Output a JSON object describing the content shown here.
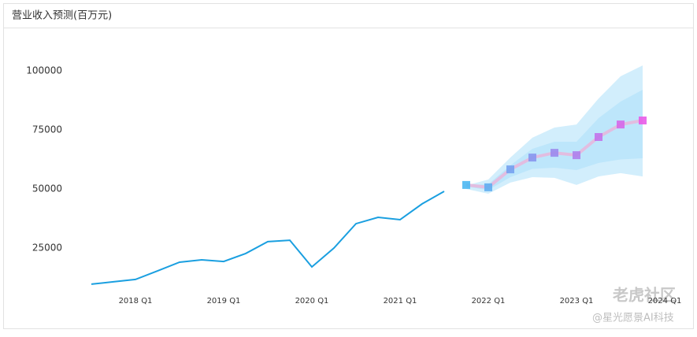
{
  "chart_data": {
    "type": "line",
    "title": "营业收入预测(百万元)",
    "categories": [
      null,
      null,
      "2018 Q1",
      null,
      null,
      null,
      "2019 Q1",
      null,
      null,
      null,
      "2020 Q1",
      null,
      null,
      null,
      "2021 Q1",
      null,
      null,
      null,
      "2022 Q1",
      null,
      null,
      null,
      "2023 Q1",
      null,
      null,
      null,
      "2024 Q1"
    ],
    "series": [
      {
        "color": "#1a9fe0",
        "values": [
          9700,
          10700,
          11700,
          15300,
          19000,
          20000,
          19300,
          22700,
          27700,
          28300,
          17000,
          25000,
          35300,
          38000,
          37000,
          43700,
          49000,
          null,
          null,
          null,
          null,
          null,
          null,
          null,
          null,
          null,
          null
        ]
      },
      {
        "color": "#e2bde0",
        "marker_colors": [
          "#4db8f2",
          "#e85ce8"
        ],
        "values": [
          null,
          null,
          null,
          null,
          null,
          null,
          null,
          null,
          null,
          null,
          null,
          null,
          null,
          null,
          null,
          null,
          null,
          51700,
          50700,
          58300,
          63300,
          65300,
          64300,
          72000,
          77300,
          79000,
          null
        ]
      }
    ],
    "bands": [
      {
        "color": "#d2eefc",
        "upper": [
          null,
          null,
          null,
          null,
          null,
          null,
          null,
          null,
          null,
          null,
          null,
          null,
          null,
          null,
          null,
          null,
          null,
          51500,
          54000,
          63300,
          71700,
          76000,
          77300,
          88300,
          97700,
          102300,
          null
        ],
        "lower": [
          null,
          null,
          null,
          null,
          null,
          null,
          null,
          null,
          null,
          null,
          null,
          null,
          null,
          null,
          null,
          null,
          null,
          50000,
          48000,
          52700,
          55000,
          54700,
          51700,
          55300,
          56700,
          55300,
          null
        ]
      },
      {
        "color": "#bde6fb",
        "upper": [
          null,
          null,
          null,
          null,
          null,
          null,
          null,
          null,
          null,
          null,
          null,
          null,
          null,
          null,
          null,
          null,
          null,
          51700,
          52000,
          60000,
          67000,
          70000,
          70000,
          80000,
          87000,
          92000,
          null
        ],
        "lower": [
          null,
          null,
          null,
          null,
          null,
          null,
          null,
          null,
          null,
          null,
          null,
          null,
          null,
          null,
          null,
          null,
          null,
          51000,
          49500,
          55000,
          58500,
          59000,
          58000,
          61000,
          62500,
          63000,
          null
        ]
      }
    ],
    "ylim": [
      5000,
      110000
    ],
    "yticks": [
      25000,
      50000,
      75000,
      100000
    ],
    "grid": false
  },
  "watermark": [
    "老虎社区",
    "@星光愿景AI科技"
  ]
}
